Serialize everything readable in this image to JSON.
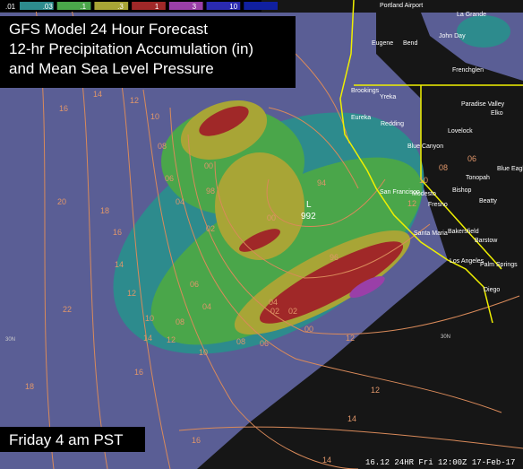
{
  "legend": {
    "labels": [
      ".01",
      ".03",
      ".1",
      ".3",
      "1",
      "3",
      "10"
    ]
  },
  "title_lines": [
    "GFS  Model 24 Hour Forecast",
    "12-hr Precipitation Accumulation (in)",
    "and Mean Sea Level Pressure"
  ],
  "time_label": "Friday 4 am PST",
  "footer": "16.12  24HR Fri 12:00Z 17-Feb-17",
  "low": {
    "letter": "L",
    "pressure": "992"
  },
  "isobar_labels": [
    "16",
    "14",
    "12",
    "10",
    "08",
    "06",
    "04",
    "02",
    "00",
    "98",
    "94",
    "96",
    "00",
    "02",
    "04",
    "06",
    "08",
    "10",
    "12",
    "14",
    "16",
    "18",
    "20",
    "22",
    "18",
    "16",
    "14",
    "12",
    "10",
    "08",
    "06",
    "04",
    "02",
    "00",
    "12",
    "14",
    "16",
    "12",
    "14",
    "06",
    "08",
    "10",
    "12"
  ],
  "cities": [
    "Portland Airport",
    "La Grande",
    "Eugene",
    "Bend",
    "John Day",
    "Frenchglen",
    "Brookings",
    "Yreka",
    "Eureka",
    "Redding",
    "Paradise Valley",
    "Elko",
    "Lovelock",
    "Blue Canyon",
    "Blue Eagle Ranch",
    "Tonopah",
    "San Francisco",
    "Modesto",
    "Fresno",
    "Bishop",
    "Beatty",
    "Bakersfield",
    "Barstow",
    "Santa Maria",
    "Los Angeles",
    "Palm Springs",
    "Diego"
  ],
  "grid_labels": [
    "30N",
    "30N"
  ]
}
